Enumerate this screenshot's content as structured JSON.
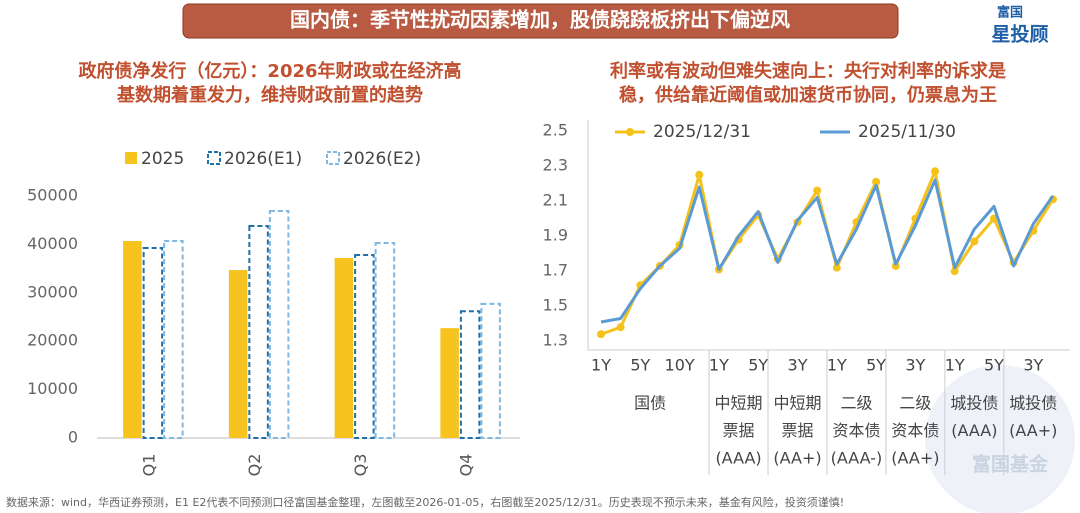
{
  "header": {
    "title": "国内债：季节性扰动因素增加，股债跷跷板挤出下偏逆风",
    "logo": [
      "富国",
      "星投顾"
    ]
  },
  "chart_data": [
    {
      "type": "bar",
      "title": [
        "政府债净发行（亿元）：2026年财政或在经济高",
        "基数期着重发力，维持财政前置的趋势"
      ],
      "categories": [
        "Q1",
        "Q2",
        "Q3",
        "Q4"
      ],
      "series": [
        {
          "name": "2025",
          "color": "#f7c31f",
          "dashed": false,
          "values": [
            40700,
            34700,
            37200,
            22700
          ]
        },
        {
          "name": "2026(E1)",
          "color": "#1f6fa8",
          "dashed": true,
          "values": [
            39250,
            43800,
            37800,
            26200
          ]
        },
        {
          "name": "2026(E2)",
          "color": "#7fb8e0",
          "dashed": true,
          "values": [
            40700,
            46900,
            40300,
            27700
          ]
        }
      ],
      "ylim": [
        0,
        50000
      ],
      "yticks": [
        0,
        10000,
        20000,
        30000,
        40000,
        50000
      ],
      "grid": false,
      "legend": "top"
    },
    {
      "type": "line",
      "title": [
        "利率或有波动但难失速向上：央行对利率的诉求是",
        "稳，供给靠近阈值或加速货币协同，仍票息为王"
      ],
      "categories": [
        "1Y",
        null,
        "5Y",
        null,
        "10Y",
        null,
        "1Y",
        null,
        "5Y",
        null,
        "3Y",
        null,
        "1Y",
        null,
        "5Y",
        null,
        "3Y",
        null,
        "1Y",
        null,
        "5Y",
        null,
        "3Y",
        null
      ],
      "groups": [
        {
          "name": [
            "国债"
          ],
          "span": 6
        },
        {
          "name": [
            "中短期",
            "票据",
            "(AAA)"
          ],
          "span": 3
        },
        {
          "name": [
            "中短期",
            "票据",
            "(AA+)"
          ],
          "span": 3
        },
        {
          "name": [
            "二级",
            "资本债",
            "(AAA-)"
          ],
          "span": 3
        },
        {
          "name": [
            "二级",
            "资本债",
            "(AA+)"
          ],
          "span": 3
        },
        {
          "name": [
            "城投债",
            "(AAA)"
          ],
          "span": 3
        },
        {
          "name": [
            "城投债",
            "(AA+)"
          ],
          "span": 3
        }
      ],
      "series": [
        {
          "name": "2025/12/31",
          "color": "#f5c21a",
          "markers": true,
          "values": [
            1.34,
            1.38,
            1.62,
            1.73,
            1.85,
            2.25,
            1.71,
            1.88,
            2.02,
            1.77,
            1.98,
            2.16,
            1.72,
            1.98,
            2.21,
            1.73,
            2.0,
            2.27,
            1.7,
            1.87,
            2.0,
            1.75,
            1.93,
            2.11
          ]
        },
        {
          "name": "2025/11/30",
          "color": "#5b9bd5",
          "markers": false,
          "values": [
            1.41,
            1.43,
            1.6,
            1.73,
            1.83,
            2.18,
            1.71,
            1.9,
            2.04,
            1.75,
            1.99,
            2.12,
            1.74,
            1.94,
            2.19,
            1.74,
            1.96,
            2.22,
            1.72,
            1.94,
            2.07,
            1.73,
            1.97,
            2.13
          ]
        }
      ],
      "ylim": [
        1.25,
        2.5
      ],
      "yticks": [
        1.3,
        1.5,
        1.7,
        1.9,
        2.1,
        2.3,
        2.5
      ],
      "grid": false,
      "legend": "top"
    }
  ],
  "footer": "数据来源：wind，华西证券预测，E1 E2代表不同预测口径富国基金整理，左图截至2026-01-05，右图截至2025/12/31。历史表现不预示未来，基金有风险，投资须谨慎!",
  "watermark": "富国基金"
}
